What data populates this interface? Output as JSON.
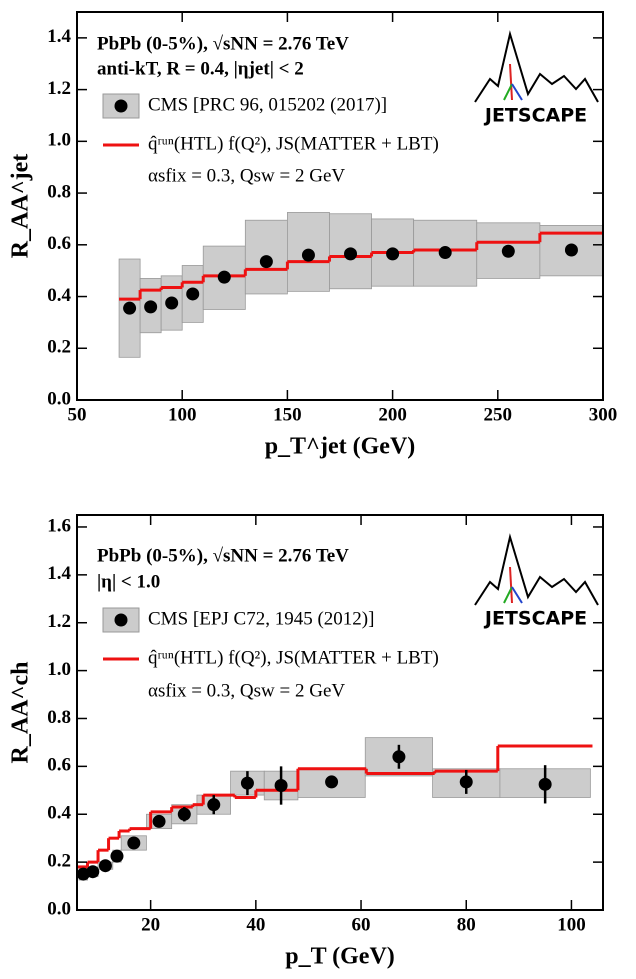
{
  "charts": [
    {
      "type": "step",
      "annotations": [
        "PbPb (0-5%),  √sNN = 2.76 TeV",
        "anti-kT,  R = 0.4,  |ηjet| < 2"
      ],
      "parameters": "αsfix = 0.3,  Qsw = 2 GeV",
      "logo": "JETSCAPE",
      "xlabel": "p_T^jet (GeV)",
      "ylabel": "R_AA^jet",
      "xlim": [
        50,
        300
      ],
      "ylim": [
        0,
        1.5
      ],
      "xticks": [
        50,
        100,
        150,
        200,
        250,
        300
      ],
      "yticks": [
        {
          "value": 0,
          "label": "0.0"
        },
        0.2,
        0.4,
        0.6,
        0.8,
        {
          "value": 1,
          "label": "1.0"
        },
        1.2,
        1.4
      ],
      "series": [
        {
          "name": "CMS [PRC 96, 015202 (2017)]",
          "color": "#000000",
          "band_color": "#cccccc",
          "x": [
            75,
            85,
            95,
            105,
            120,
            140,
            160,
            180,
            200,
            225,
            255,
            285
          ],
          "values": [
            0.355,
            0.36,
            0.375,
            0.41,
            0.475,
            0.535,
            0.56,
            0.565,
            0.565,
            0.57,
            0.575,
            0.58
          ],
          "band_bins": [
            70,
            80,
            90,
            100,
            110,
            130,
            150,
            170,
            190,
            210,
            240,
            270,
            300
          ],
          "band_low": [
            0.165,
            0.26,
            0.27,
            0.3,
            0.35,
            0.41,
            0.42,
            0.43,
            0.44,
            0.44,
            0.47,
            0.48
          ],
          "band_high": [
            0.545,
            0.47,
            0.48,
            0.52,
            0.595,
            0.695,
            0.725,
            0.72,
            0.7,
            0.695,
            0.685,
            0.675
          ]
        },
        {
          "name": "q̂ʳᵘⁿ(HTL) f(Q²), JS(MATTER + LBT)",
          "color": "#ee1111",
          "bins": [
            70,
            80,
            90,
            100,
            110,
            130,
            150,
            170,
            190,
            210,
            240,
            270,
            300
          ],
          "values": [
            0.39,
            0.425,
            0.435,
            0.455,
            0.48,
            0.505,
            0.535,
            0.555,
            0.57,
            0.58,
            0.61,
            0.645
          ]
        }
      ]
    },
    {
      "type": "step",
      "annotations": [
        "PbPb (0-5%),  √sNN = 2.76 TeV",
        "|η| < 1.0"
      ],
      "parameters": "αsfix = 0.3,  Qsw = 2 GeV",
      "logo": "JETSCAPE",
      "xlabel": "p_T (GeV)",
      "ylabel": "R_AA^ch",
      "xlim": [
        6,
        106
      ],
      "ylim": [
        0,
        1.65
      ],
      "xticks": [
        20,
        40,
        60,
        80,
        100
      ],
      "yticks": [
        {
          "value": 0,
          "label": "0.0"
        },
        0.2,
        0.4,
        0.6,
        0.8,
        {
          "value": 1,
          "label": "1.0"
        },
        1.2,
        1.4,
        1.6
      ],
      "series": [
        {
          "name": "CMS [EPJ C72, 1945 (2012)]",
          "color": "#000000",
          "band_color": "#cccccc",
          "x": [
            7.2,
            9,
            11.4,
            13.6,
            16.8,
            21.6,
            26.4,
            32,
            38.4,
            44.8,
            54.4,
            67.2,
            80,
            95
          ],
          "values": [
            0.15,
            0.16,
            0.185,
            0.225,
            0.28,
            0.37,
            0.4,
            0.44,
            0.53,
            0.52,
            0.535,
            0.64,
            0.535,
            0.525
          ],
          "errors": [
            0.01,
            0.01,
            0.01,
            0.01,
            0.015,
            0.02,
            0.03,
            0.04,
            0.05,
            0.08,
            0.025,
            0.05,
            0.05,
            0.08
          ],
          "band_bins": [
            6.4,
            8,
            10,
            12.8,
            14.4,
            19.2,
            24,
            28.8,
            35.2,
            41.6,
            48,
            60.8,
            73.6,
            86.4,
            103.6
          ],
          "band_low": [
            0.125,
            0.14,
            0.17,
            0.2,
            0.25,
            0.34,
            0.36,
            0.4,
            0.48,
            0.46,
            0.47,
            0.56,
            0.47,
            0.47
          ],
          "band_high": [
            0.175,
            0.18,
            0.2,
            0.25,
            0.31,
            0.4,
            0.44,
            0.48,
            0.58,
            0.58,
            0.59,
            0.72,
            0.59,
            0.59
          ]
        },
        {
          "name": "q̂ʳᵘⁿ(HTL) f(Q²), JS(MATTER + LBT)",
          "color": "#ee1111",
          "bins": [
            6,
            8,
            10,
            12,
            14,
            16,
            20,
            24,
            28,
            30,
            36,
            40,
            48,
            61,
            74,
            86,
            104
          ],
          "values": [
            0.18,
            0.2,
            0.25,
            0.3,
            0.33,
            0.34,
            0.41,
            0.43,
            0.44,
            0.48,
            0.47,
            0.5,
            0.59,
            0.57,
            0.58,
            0.685
          ]
        }
      ]
    }
  ]
}
